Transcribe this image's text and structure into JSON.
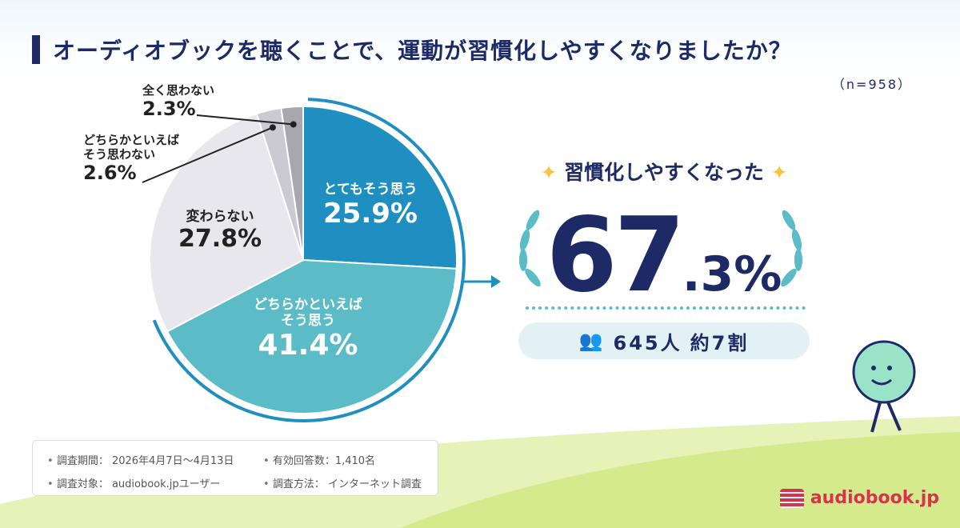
{
  "title": "オーディオブックを聴くことで、運動が習慣化しやすくなりましたか？",
  "sample": "（n=958）",
  "chart_data": {
    "type": "pie",
    "start": "12 o'clock, clockwise",
    "slices": [
      {
        "label": "とてもそう思う",
        "display": "25.9%",
        "value": 25.9,
        "color": "#1e8fc0"
      },
      {
        "label": "どちらかといえば\nそう思う",
        "display": "41.4%",
        "value": 41.4,
        "color": "#5bbcc8"
      },
      {
        "label": "変わらない",
        "display": "27.8%",
        "value": 27.8,
        "color": "#e8e7ee"
      },
      {
        "label": "どちらかといえば\nそう思わない",
        "display": "2.6%",
        "value": 2.6,
        "color": "#cbc9d2"
      },
      {
        "label": "全く思わない",
        "display": "2.3%",
        "value": 2.3,
        "color": "#a8a6ae"
      }
    ],
    "accent": "#1d2a66"
  },
  "hero": {
    "subtitle": "習慣化しやすくなった",
    "value_int": "67",
    "value_dec": ".3",
    "value_unit": "%",
    "count": "645人",
    "ratio": "約7割",
    "icon": "people-icon"
  },
  "info": {
    "period": "調査期間： 2026年4月7日〜4月13日",
    "valid": "有効回答数：1,410名",
    "target": "調査対象： audiobook.jpユーザー",
    "method": "調査方法： インターネット調査"
  },
  "logo": "audiobook.jp"
}
